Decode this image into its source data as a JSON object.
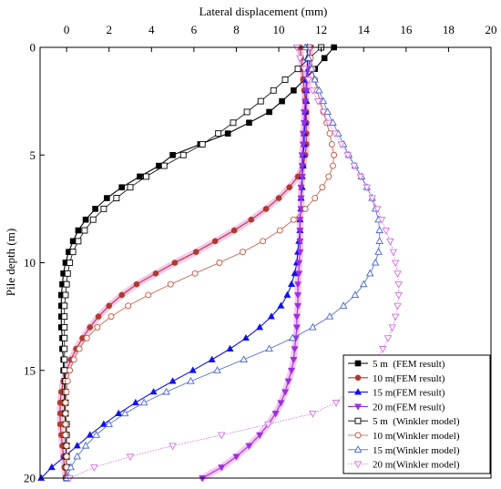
{
  "chart_data": {
    "type": "line",
    "xlabel": "Lateral displacement (mm)",
    "ylabel": "Pile depth (m)",
    "x_axis_position": "top",
    "y_inverted": true,
    "xlim": [
      -1.25,
      20
    ],
    "ylim": [
      0,
      20
    ],
    "x_ticks": [
      0,
      2,
      4,
      6,
      8,
      10,
      12,
      14,
      16,
      18,
      20
    ],
    "y_ticks": [
      0,
      5,
      10,
      15,
      20
    ],
    "grid": false,
    "legend": "bottom-right",
    "depth": [
      0,
      0.5,
      1,
      1.5,
      2,
      2.5,
      3,
      3.5,
      4,
      4.5,
      5,
      5.5,
      6,
      6.5,
      7,
      7.5,
      8,
      8.5,
      9,
      9.5,
      10,
      10.5,
      11,
      11.5,
      12,
      12.5,
      13,
      13.5,
      14,
      14.5,
      15,
      15.5,
      16,
      16.5,
      17,
      17.5,
      18,
      18.5,
      19,
      19.5,
      20
    ],
    "series": [
      {
        "name": "5 m  (FEM result)",
        "color": "#000000",
        "marker": "filled-square",
        "line_style": "solid",
        "values": [
          12.6,
          12.15,
          11.7,
          11.2,
          10.7,
          10.15,
          9.55,
          8.6,
          7.6,
          6.3,
          5.0,
          4.35,
          3.45,
          2.6,
          1.9,
          1.35,
          0.9,
          0.55,
          0.3,
          0.1,
          -0.05,
          -0.15,
          -0.2,
          -0.25,
          -0.25,
          -0.25,
          -0.25,
          -0.2,
          -0.2,
          -0.15,
          -0.15,
          -0.1,
          -0.1,
          -0.1,
          -0.1,
          -0.05,
          -0.05,
          -0.05,
          0,
          0,
          0
        ]
      },
      {
        "name": "10 m(FEM result)",
        "color": "#b03a2e",
        "marker": "filled-circle",
        "line_style": "solid",
        "halo_color": "#f3a6e6",
        "values": [
          11.0,
          11.05,
          11.1,
          11.15,
          11.2,
          11.25,
          11.3,
          11.3,
          11.3,
          11.3,
          11.25,
          11.15,
          10.9,
          10.5,
          10.0,
          9.4,
          8.7,
          7.9,
          7.0,
          6.1,
          5.1,
          4.2,
          3.3,
          2.6,
          2.0,
          1.5,
          1.1,
          0.75,
          0.45,
          0.2,
          0.0,
          -0.15,
          -0.25,
          -0.3,
          -0.3,
          -0.3,
          -0.25,
          -0.2,
          -0.15,
          -0.1,
          -0.05
        ]
      },
      {
        "name": "15 m(FEM result)",
        "color": "#1010f0",
        "marker": "filled-triangle",
        "line_style": "solid",
        "values": [
          11.35,
          11.35,
          11.35,
          11.3,
          11.3,
          11.3,
          11.25,
          11.25,
          11.2,
          11.2,
          11.15,
          11.15,
          11.1,
          11.1,
          11.05,
          11.05,
          11.0,
          11.0,
          10.95,
          10.9,
          10.85,
          10.75,
          10.6,
          10.4,
          10.1,
          9.65,
          9.1,
          8.45,
          7.7,
          6.85,
          5.95,
          5.0,
          4.1,
          3.25,
          2.45,
          1.75,
          1.1,
          0.5,
          -0.1,
          -0.7,
          -1.2
        ]
      },
      {
        "name": "20 m(FEM result)",
        "color": "#9b2fe0",
        "marker": "filled-triangle-down",
        "line_style": "solid",
        "halo_color": "#f3a6e6",
        "values": [
          11.5,
          11.45,
          11.4,
          11.35,
          11.3,
          11.25,
          11.2,
          11.2,
          11.15,
          11.15,
          11.1,
          11.1,
          11.1,
          11.05,
          11.05,
          11.05,
          11.0,
          11.0,
          11.0,
          11.0,
          10.95,
          10.95,
          10.9,
          10.9,
          10.9,
          10.85,
          10.85,
          10.8,
          10.75,
          10.7,
          10.6,
          10.45,
          10.3,
          10.1,
          9.85,
          9.5,
          9.1,
          8.6,
          8.0,
          7.3,
          6.4
        ]
      },
      {
        "name": "5 m  (Winkler model)",
        "color": "#000000",
        "marker": "open-square",
        "line_style": "solid",
        "values": [
          12.0,
          11.45,
          10.9,
          10.3,
          9.75,
          9.15,
          8.5,
          7.85,
          7.15,
          6.4,
          5.5,
          4.6,
          3.75,
          3.0,
          2.35,
          1.75,
          1.25,
          0.85,
          0.55,
          0.3,
          0.15,
          0.05,
          0.0,
          -0.05,
          -0.1,
          -0.1,
          -0.1,
          -0.1,
          -0.1,
          -0.1,
          -0.1,
          -0.05,
          -0.05,
          -0.05,
          -0.05,
          0,
          0,
          0,
          0,
          0,
          0
        ]
      },
      {
        "name": "10 m(Winkler model)",
        "color": "#c2553f",
        "marker": "open-circle",
        "line_style": "solid",
        "values": [
          11.45,
          11.5,
          11.6,
          11.7,
          11.8,
          11.95,
          12.1,
          12.25,
          12.4,
          12.5,
          12.6,
          12.55,
          12.35,
          12.05,
          11.7,
          11.25,
          10.7,
          10.05,
          9.25,
          8.3,
          7.2,
          6.05,
          4.9,
          3.85,
          2.9,
          2.1,
          1.45,
          0.95,
          0.6,
          0.35,
          0.15,
          0.05,
          0.0,
          -0.05,
          -0.05,
          -0.05,
          -0.05,
          0,
          0,
          0,
          0
        ]
      },
      {
        "name": "15 m(Winkler model)",
        "color": "#4563d6",
        "marker": "open-triangle",
        "line_style": "solid",
        "values": [
          11.25,
          11.4,
          11.55,
          11.7,
          11.9,
          12.1,
          12.3,
          12.55,
          12.8,
          13.05,
          13.3,
          13.6,
          13.9,
          14.15,
          14.4,
          14.55,
          14.7,
          14.75,
          14.75,
          14.7,
          14.55,
          14.3,
          14.0,
          13.6,
          13.05,
          12.4,
          11.6,
          10.65,
          9.55,
          8.35,
          7.1,
          5.85,
          4.7,
          3.65,
          2.75,
          2.0,
          1.4,
          0.9,
          0.5,
          0.2,
          0.0
        ]
      },
      {
        "name": "20 m(Winkler model)",
        "color": "#d46fe6",
        "marker": "open-triangle-down",
        "line_style": "dotted",
        "values": [
          10.85,
          11.0,
          11.2,
          11.4,
          11.6,
          11.85,
          12.1,
          12.35,
          12.65,
          12.95,
          13.25,
          13.55,
          13.85,
          14.15,
          14.4,
          14.65,
          14.85,
          15.05,
          15.25,
          15.4,
          15.5,
          15.6,
          15.65,
          15.65,
          15.6,
          15.5,
          15.35,
          15.15,
          14.9,
          14.55,
          14.15,
          13.7,
          13.25,
          12.7,
          11.6,
          9.5,
          7.3,
          5.0,
          3.0,
          1.3,
          0.15
        ]
      }
    ]
  }
}
